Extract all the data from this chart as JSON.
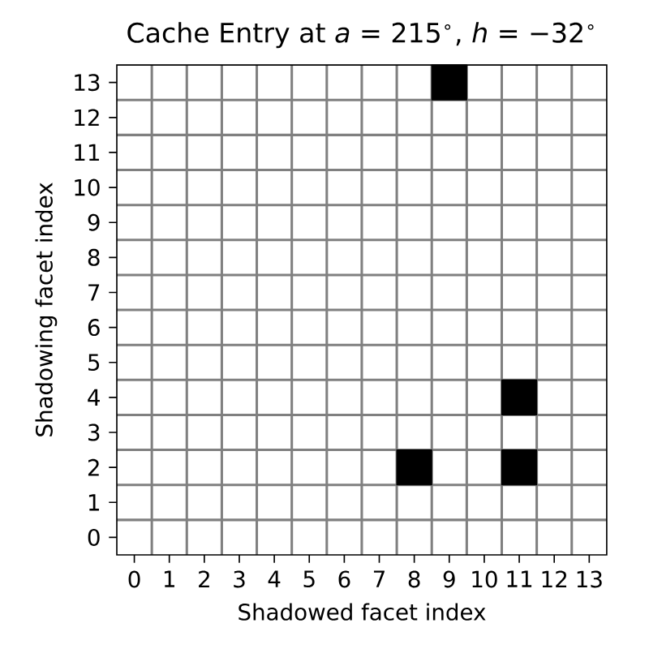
{
  "chart_data": {
    "type": "scatter",
    "title": "Cache Entry at *a* = 215$^{∘}$, *h* = −32$^{∘}$",
    "xlabel": "Shadowed facet index",
    "ylabel": "Shadowing facet index",
    "x": [
      9,
      11,
      8,
      11
    ],
    "values": [
      13,
      4,
      2,
      2
    ],
    "color": "#000000",
    "marker": "square",
    "xlim": [
      -0.5,
      13.5
    ],
    "ylim": [
      -0.5,
      13.5
    ],
    "xticks": [
      0,
      1,
      2,
      3,
      4,
      5,
      6,
      7,
      8,
      9,
      10,
      11,
      12,
      13
    ],
    "yticks": [
      0,
      1,
      2,
      3,
      4,
      5,
      6,
      7,
      8,
      9,
      10,
      11,
      12,
      13
    ]
  }
}
